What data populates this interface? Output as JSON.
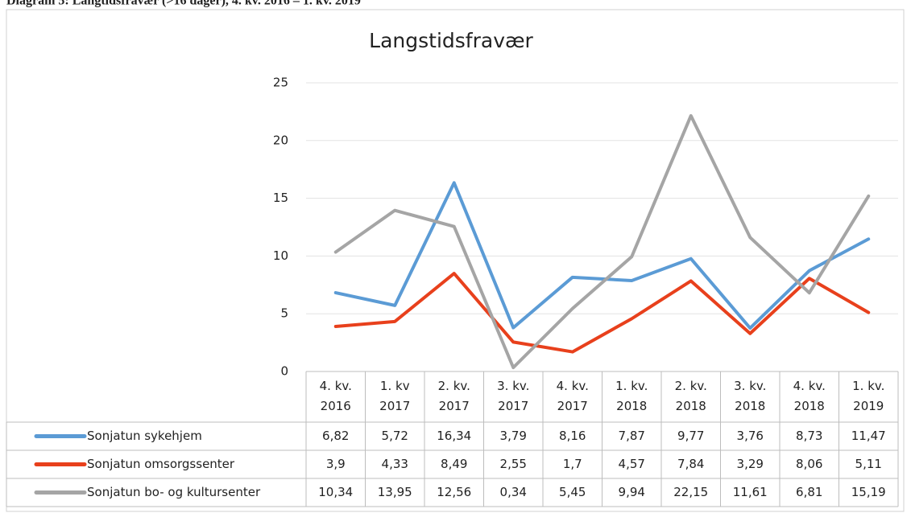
{
  "caption": "Diagram 5: Langtidsfravær (>16 dager), 4. kv. 2016 – 1. kv. 2019",
  "chart_data": {
    "type": "line",
    "title": "Langstidsfravær",
    "categories": [
      "4. kv.\n2016",
      "1. kv\n2017",
      "2. kv.\n2017",
      "3. kv.\n2017",
      "4. kv.\n2017",
      "1. kv.\n2018",
      "2. kv.\n2018",
      "3. kv.\n2018",
      "4. kv.\n2018",
      "1. kv.\n2019"
    ],
    "series": [
      {
        "name": "Sonjatun sykehjem",
        "color": "#5b9bd5",
        "values": [
          6.82,
          5.72,
          16.34,
          3.79,
          8.16,
          7.87,
          9.77,
          3.76,
          8.73,
          11.47
        ],
        "value_labels": [
          "6,82",
          "5,72",
          "16,34",
          "3,79",
          "8,16",
          "7,87",
          "9,77",
          "3,76",
          "8,73",
          "11,47"
        ]
      },
      {
        "name": "Sonjatun omsorgssenter",
        "color": "#e8401c",
        "values": [
          3.9,
          4.33,
          8.49,
          2.55,
          1.7,
          4.57,
          7.84,
          3.29,
          8.06,
          5.11
        ],
        "value_labels": [
          "3,9",
          "4,33",
          "8,49",
          "2,55",
          "1,7",
          "4,57",
          "7,84",
          "3,29",
          "8,06",
          "5,11"
        ]
      },
      {
        "name": "Sonjatun bo- og kultursenter",
        "color": "#a5a5a5",
        "values": [
          10.34,
          13.95,
          12.56,
          0.34,
          5.45,
          9.94,
          22.15,
          11.61,
          6.81,
          15.19
        ],
        "value_labels": [
          "10,34",
          "13,95",
          "12,56",
          "0,34",
          "5,45",
          "9,94",
          "22,15",
          "11,61",
          "6,81",
          "15,19"
        ]
      }
    ],
    "ylim": [
      0,
      25
    ],
    "yticks": [
      0,
      5,
      10,
      15,
      20,
      25
    ],
    "grid": true
  }
}
